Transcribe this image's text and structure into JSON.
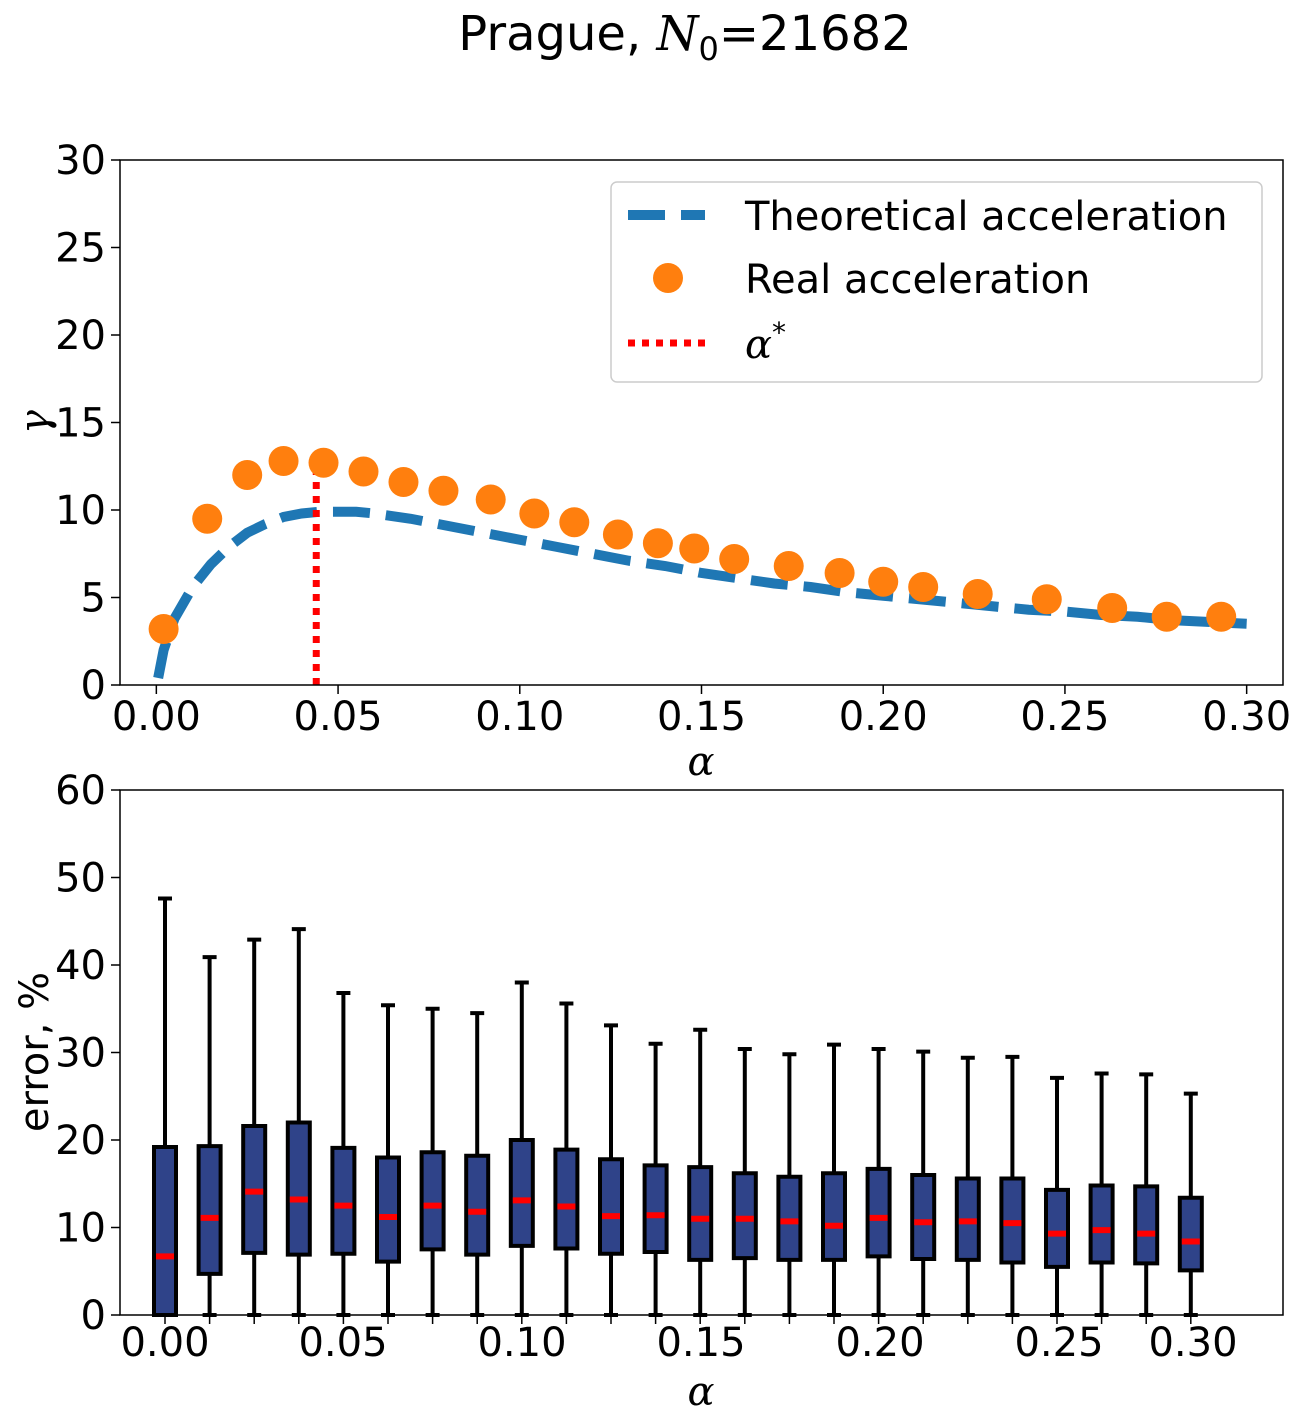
{
  "figure": {
    "title_prefix": "Prague, ",
    "title_var": "N",
    "title_sub": "0",
    "title_suffix": "=21682"
  },
  "chart_data": [
    {
      "type": "line",
      "xlabel": "α",
      "ylabel": "γ",
      "xlim": [
        -0.01,
        0.31
      ],
      "ylim": [
        0,
        30
      ],
      "xticks": [
        0.0,
        0.05,
        0.1,
        0.15,
        0.2,
        0.25,
        0.3
      ],
      "xtick_labels": [
        "0.00",
        "0.05",
        "0.10",
        "0.15",
        "0.20",
        "0.25",
        "0.30"
      ],
      "yticks": [
        0,
        5,
        10,
        15,
        20,
        25,
        30
      ],
      "ytick_labels": [
        "0",
        "5",
        "10",
        "15",
        "20",
        "25",
        "30"
      ],
      "grid": false,
      "legend_position": "top-right",
      "series": [
        {
          "name": "Theoretical acceleration",
          "style": "dashed-line",
          "color": "#1f77b4",
          "x": [
            0.0005,
            0.002,
            0.005,
            0.01,
            0.015,
            0.02,
            0.025,
            0.03,
            0.035,
            0.04,
            0.045,
            0.05,
            0.055,
            0.06,
            0.07,
            0.08,
            0.09,
            0.1,
            0.11,
            0.12,
            0.13,
            0.14,
            0.15,
            0.16,
            0.17,
            0.18,
            0.19,
            0.2,
            0.21,
            0.22,
            0.23,
            0.24,
            0.25,
            0.26,
            0.27,
            0.28,
            0.29,
            0.3
          ],
          "y": [
            0.4,
            2.0,
            3.8,
            5.6,
            6.9,
            7.9,
            8.7,
            9.2,
            9.6,
            9.8,
            9.9,
            9.9,
            9.9,
            9.8,
            9.5,
            9.1,
            8.7,
            8.3,
            7.9,
            7.5,
            7.1,
            6.8,
            6.4,
            6.1,
            5.8,
            5.6,
            5.3,
            5.1,
            4.9,
            4.7,
            4.5,
            4.3,
            4.2,
            4.0,
            3.9,
            3.7,
            3.6,
            3.5
          ]
        },
        {
          "name": "Real acceleration",
          "style": "markers",
          "color": "#ff7f0e",
          "x": [
            0.002,
            0.014,
            0.025,
            0.035,
            0.046,
            0.057,
            0.068,
            0.079,
            0.092,
            0.104,
            0.115,
            0.127,
            0.138,
            0.148,
            0.159,
            0.174,
            0.188,
            0.2,
            0.211,
            0.226,
            0.245,
            0.263,
            0.278,
            0.293
          ],
          "y": [
            3.2,
            9.5,
            12.0,
            12.8,
            12.7,
            12.2,
            11.6,
            11.1,
            10.6,
            9.8,
            9.3,
            8.6,
            8.1,
            7.8,
            7.2,
            6.8,
            6.4,
            5.9,
            5.6,
            5.2,
            4.9,
            4.4,
            3.9,
            3.9
          ]
        },
        {
          "name": "α*",
          "style": "dotted-vline",
          "color": "#ff0000",
          "x": [
            0.044,
            0.044
          ],
          "y": [
            0,
            12.7
          ]
        }
      ]
    },
    {
      "type": "box",
      "xlabel": "α",
      "ylabel": "error, %",
      "ylim": [
        0,
        60
      ],
      "yticks": [
        0,
        10,
        20,
        30,
        40,
        50,
        60
      ],
      "ytick_labels": [
        "0",
        "10",
        "20",
        "30",
        "40",
        "50",
        "60"
      ],
      "xtick_labels": [
        "0.00",
        "0.05",
        "0.10",
        "0.15",
        "0.20",
        "0.25",
        "0.30"
      ],
      "grid": false,
      "box_color": "#2f4389",
      "median_color": "#ff0000",
      "boxes": [
        {
          "whislo": 0,
          "q1": 0.0,
          "med": 6.7,
          "q3": 19.2,
          "whishi": 47.6
        },
        {
          "whislo": 0,
          "q1": 4.7,
          "med": 11.1,
          "q3": 19.3,
          "whishi": 40.9
        },
        {
          "whislo": 0,
          "q1": 7.1,
          "med": 14.1,
          "q3": 21.6,
          "whishi": 42.9
        },
        {
          "whislo": 0,
          "q1": 6.9,
          "med": 13.2,
          "q3": 22.0,
          "whishi": 44.1
        },
        {
          "whislo": 0,
          "q1": 7.0,
          "med": 12.5,
          "q3": 19.1,
          "whishi": 36.8
        },
        {
          "whislo": 0,
          "q1": 6.1,
          "med": 11.2,
          "q3": 18.0,
          "whishi": 35.4
        },
        {
          "whislo": 0,
          "q1": 7.5,
          "med": 12.5,
          "q3": 18.6,
          "whishi": 35.0
        },
        {
          "whislo": 0,
          "q1": 6.9,
          "med": 11.8,
          "q3": 18.2,
          "whishi": 34.5
        },
        {
          "whislo": 0,
          "q1": 7.9,
          "med": 13.1,
          "q3": 20.0,
          "whishi": 38.0
        },
        {
          "whislo": 0,
          "q1": 7.6,
          "med": 12.4,
          "q3": 18.9,
          "whishi": 35.6
        },
        {
          "whislo": 0,
          "q1": 7.0,
          "med": 11.3,
          "q3": 17.8,
          "whishi": 33.1
        },
        {
          "whislo": 0,
          "q1": 7.2,
          "med": 11.4,
          "q3": 17.1,
          "whishi": 31.0
        },
        {
          "whislo": 0,
          "q1": 6.3,
          "med": 11.0,
          "q3": 16.9,
          "whishi": 32.6
        },
        {
          "whislo": 0,
          "q1": 6.5,
          "med": 11.0,
          "q3": 16.2,
          "whishi": 30.4
        },
        {
          "whislo": 0,
          "q1": 6.3,
          "med": 10.7,
          "q3": 15.8,
          "whishi": 29.8
        },
        {
          "whislo": 0,
          "q1": 6.3,
          "med": 10.2,
          "q3": 16.2,
          "whishi": 30.9
        },
        {
          "whislo": 0,
          "q1": 6.7,
          "med": 11.1,
          "q3": 16.7,
          "whishi": 30.4
        },
        {
          "whislo": 0,
          "q1": 6.4,
          "med": 10.6,
          "q3": 16.0,
          "whishi": 30.1
        },
        {
          "whislo": 0,
          "q1": 6.3,
          "med": 10.7,
          "q3": 15.6,
          "whishi": 29.4
        },
        {
          "whislo": 0,
          "q1": 6.0,
          "med": 10.5,
          "q3": 15.6,
          "whishi": 29.5
        },
        {
          "whislo": 0,
          "q1": 5.5,
          "med": 9.3,
          "q3": 14.3,
          "whishi": 27.1
        },
        {
          "whislo": 0,
          "q1": 6.0,
          "med": 9.7,
          "q3": 14.8,
          "whishi": 27.6
        },
        {
          "whislo": 0,
          "q1": 5.9,
          "med": 9.3,
          "q3": 14.7,
          "whishi": 27.5
        },
        {
          "whislo": 0,
          "q1": 5.1,
          "med": 8.4,
          "q3": 13.4,
          "whishi": 25.3
        }
      ]
    }
  ]
}
